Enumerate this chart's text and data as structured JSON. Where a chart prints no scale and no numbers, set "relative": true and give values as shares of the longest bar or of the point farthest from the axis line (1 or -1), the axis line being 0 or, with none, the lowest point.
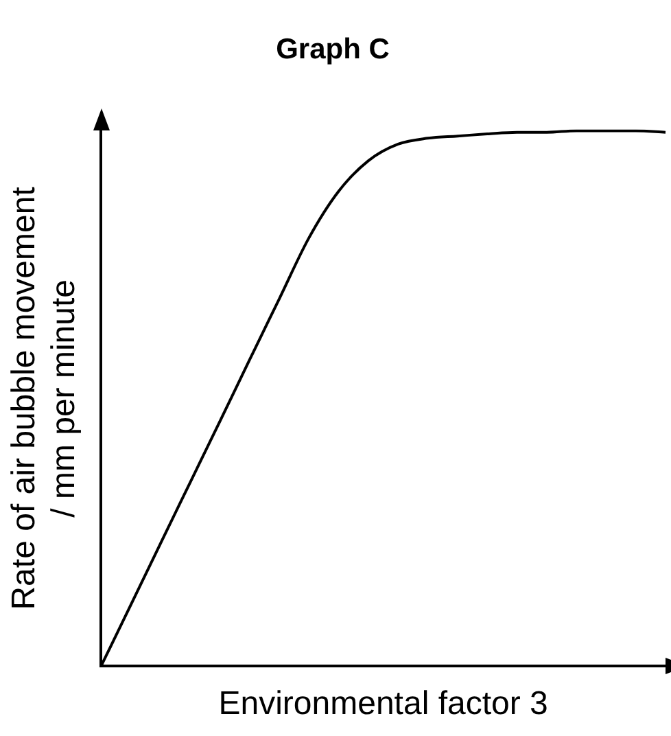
{
  "chart_data": {
    "type": "line",
    "title": "Graph C",
    "xlabel": "Environmental factor 3",
    "ylabel": "Rate of air bubble movement / mm per minute",
    "relative": true,
    "color": "#000000",
    "marker": "none",
    "line_style": "solid",
    "grid": false,
    "legend": false,
    "categories": [
      null,
      null,
      null,
      null,
      null,
      null,
      null,
      null,
      null,
      null,
      null,
      null,
      null,
      null,
      null,
      null,
      null,
      null,
      null,
      null
    ],
    "values": [
      0,
      0.114,
      0.229,
      0.343,
      0.457,
      0.572,
      0.686,
      0.8,
      0.887,
      0.944,
      0.975,
      0.986,
      0.99,
      0.994,
      0.997,
      0.997,
      1,
      1,
      1,
      0.997
    ]
  }
}
